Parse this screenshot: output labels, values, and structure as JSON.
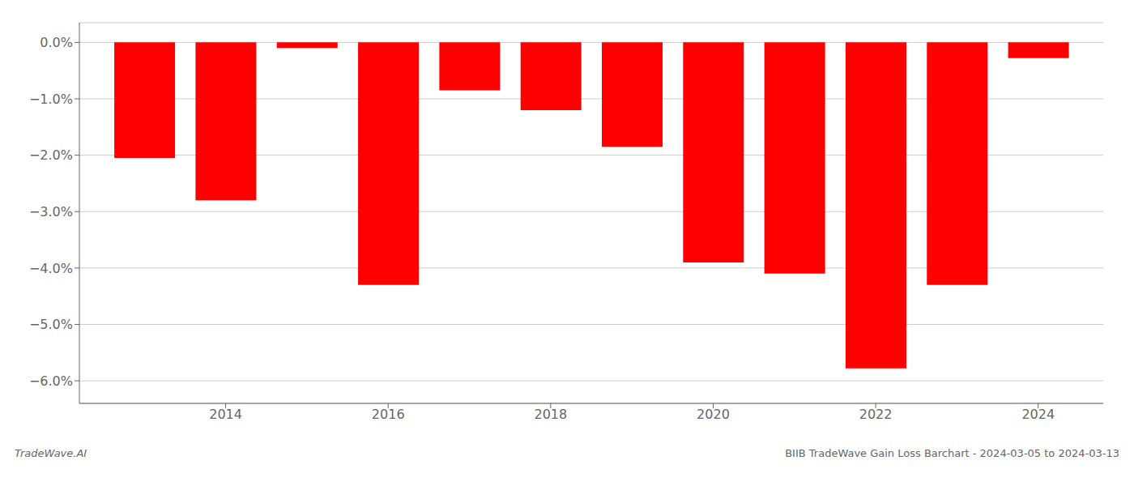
{
  "chart_data": {
    "type": "bar",
    "title": "BIIB TradeWave Gain Loss Barchart - 2024-03-05 to 2024-03-13",
    "annotations": [
      "TradeWave.AI"
    ],
    "x": [
      2013,
      2014,
      2015,
      2016,
      2017,
      2018,
      2019,
      2020,
      2021,
      2022,
      2023,
      2024
    ],
    "values": [
      -2.05,
      -2.8,
      -0.1,
      -4.3,
      -0.85,
      -1.2,
      -1.85,
      -3.9,
      -4.1,
      -5.78,
      -4.3,
      -0.28
    ],
    "color": "#ff0000",
    "xlim": [
      2012.2,
      2024.8
    ],
    "xticks": [
      2014,
      2016,
      2018,
      2020,
      2022,
      2024
    ],
    "ylim": [
      -6.4,
      0.35
    ],
    "yticks": [
      {
        "value": 0.0,
        "label": "0.0%"
      },
      {
        "value": -1.0,
        "label": "−1.0%"
      },
      {
        "value": -2.0,
        "label": "−2.0%"
      },
      {
        "value": -3.0,
        "label": "−3.0%"
      },
      {
        "value": -4.0,
        "label": "−4.0%"
      },
      {
        "value": -5.0,
        "label": "−5.0%"
      },
      {
        "value": -6.0,
        "label": "−6.0%"
      }
    ],
    "grid": true
  }
}
